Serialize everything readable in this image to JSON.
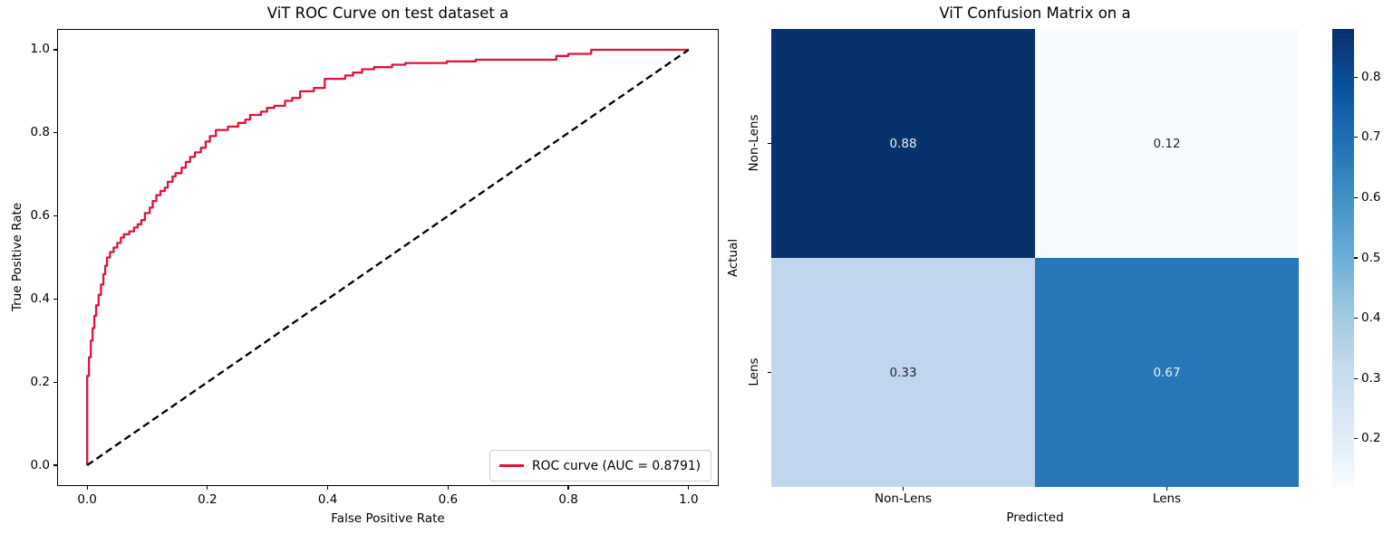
{
  "figure": {
    "background": "#ffffff"
  },
  "chart_data": [
    {
      "type": "line",
      "id": "roc-curve-plot",
      "title": "ViT ROC Curve on test dataset a",
      "xlabel": "False Positive Rate",
      "ylabel": "True Positive Rate",
      "xlim": [
        -0.05,
        1.05
      ],
      "ylim": [
        -0.05,
        1.05
      ],
      "grid": false,
      "xtick_values": [
        0.0,
        0.2,
        0.4,
        0.6,
        0.8,
        1.0
      ],
      "xtick_labels": [
        "0.0",
        "0.2",
        "0.4",
        "0.6",
        "0.8",
        "1.0"
      ],
      "ytick_values": [
        0.0,
        0.2,
        0.4,
        0.6,
        0.8,
        1.0
      ],
      "ytick_labels": [
        "0.0",
        "0.2",
        "0.4",
        "0.6",
        "0.8",
        "1.0"
      ],
      "auc": "0.8791",
      "legend": {
        "position": "lower right",
        "label": "ROC curve (AUC = 0.8791)",
        "line_color": "#DC143C"
      },
      "series": [
        {
          "name": "roc-curve",
          "color": "#DC143C",
          "width": 2.3,
          "dash": null,
          "points": [
            [
              0.0,
              0.0
            ],
            [
              0.0,
              0.215
            ],
            [
              0.003,
              0.215
            ],
            [
              0.003,
              0.26
            ],
            [
              0.006,
              0.26
            ],
            [
              0.006,
              0.3
            ],
            [
              0.009,
              0.3
            ],
            [
              0.009,
              0.33
            ],
            [
              0.012,
              0.33
            ],
            [
              0.012,
              0.36
            ],
            [
              0.015,
              0.36
            ],
            [
              0.015,
              0.385
            ],
            [
              0.019,
              0.385
            ],
            [
              0.019,
              0.41
            ],
            [
              0.023,
              0.41
            ],
            [
              0.023,
              0.435
            ],
            [
              0.027,
              0.435
            ],
            [
              0.027,
              0.46
            ],
            [
              0.03,
              0.46
            ],
            [
              0.03,
              0.48
            ],
            [
              0.033,
              0.48
            ],
            [
              0.033,
              0.5
            ],
            [
              0.038,
              0.5
            ],
            [
              0.038,
              0.513
            ],
            [
              0.044,
              0.513
            ],
            [
              0.044,
              0.524
            ],
            [
              0.05,
              0.524
            ],
            [
              0.05,
              0.535
            ],
            [
              0.056,
              0.535
            ],
            [
              0.056,
              0.548
            ],
            [
              0.061,
              0.548
            ],
            [
              0.061,
              0.556
            ],
            [
              0.07,
              0.556
            ],
            [
              0.07,
              0.563
            ],
            [
              0.078,
              0.563
            ],
            [
              0.078,
              0.572
            ],
            [
              0.084,
              0.572
            ],
            [
              0.084,
              0.58
            ],
            [
              0.09,
              0.58
            ],
            [
              0.09,
              0.59
            ],
            [
              0.096,
              0.59
            ],
            [
              0.096,
              0.607
            ],
            [
              0.104,
              0.607
            ],
            [
              0.104,
              0.62
            ],
            [
              0.109,
              0.62
            ],
            [
              0.109,
              0.636
            ],
            [
              0.115,
              0.636
            ],
            [
              0.115,
              0.65
            ],
            [
              0.122,
              0.65
            ],
            [
              0.122,
              0.66
            ],
            [
              0.129,
              0.66
            ],
            [
              0.129,
              0.668
            ],
            [
              0.134,
              0.668
            ],
            [
              0.134,
              0.682
            ],
            [
              0.142,
              0.682
            ],
            [
              0.142,
              0.695
            ],
            [
              0.147,
              0.695
            ],
            [
              0.147,
              0.703
            ],
            [
              0.157,
              0.703
            ],
            [
              0.157,
              0.716
            ],
            [
              0.164,
              0.716
            ],
            [
              0.164,
              0.73
            ],
            [
              0.171,
              0.73
            ],
            [
              0.171,
              0.742
            ],
            [
              0.179,
              0.742
            ],
            [
              0.179,
              0.753
            ],
            [
              0.189,
              0.753
            ],
            [
              0.189,
              0.764
            ],
            [
              0.197,
              0.764
            ],
            [
              0.197,
              0.779
            ],
            [
              0.204,
              0.779
            ],
            [
              0.204,
              0.792
            ],
            [
              0.214,
              0.792
            ],
            [
              0.214,
              0.807
            ],
            [
              0.234,
              0.807
            ],
            [
              0.234,
              0.815
            ],
            [
              0.251,
              0.815
            ],
            [
              0.251,
              0.824
            ],
            [
              0.263,
              0.824
            ],
            [
              0.263,
              0.832
            ],
            [
              0.271,
              0.832
            ],
            [
              0.271,
              0.843
            ],
            [
              0.289,
              0.843
            ],
            [
              0.289,
              0.851
            ],
            [
              0.299,
              0.851
            ],
            [
              0.299,
              0.86
            ],
            [
              0.311,
              0.86
            ],
            [
              0.311,
              0.865
            ],
            [
              0.329,
              0.865
            ],
            [
              0.329,
              0.877
            ],
            [
              0.341,
              0.877
            ],
            [
              0.341,
              0.884
            ],
            [
              0.354,
              0.884
            ],
            [
              0.354,
              0.9
            ],
            [
              0.377,
              0.9
            ],
            [
              0.377,
              0.908
            ],
            [
              0.395,
              0.908
            ],
            [
              0.395,
              0.93
            ],
            [
              0.429,
              0.93
            ],
            [
              0.429,
              0.938
            ],
            [
              0.442,
              0.938
            ],
            [
              0.442,
              0.945
            ],
            [
              0.457,
              0.945
            ],
            [
              0.457,
              0.953
            ],
            [
              0.477,
              0.953
            ],
            [
              0.477,
              0.958
            ],
            [
              0.507,
              0.958
            ],
            [
              0.507,
              0.964
            ],
            [
              0.529,
              0.964
            ],
            [
              0.529,
              0.968
            ],
            [
              0.598,
              0.968
            ],
            [
              0.598,
              0.972
            ],
            [
              0.646,
              0.972
            ],
            [
              0.646,
              0.976
            ],
            [
              0.78,
              0.976
            ],
            [
              0.78,
              0.985
            ],
            [
              0.8,
              0.985
            ],
            [
              0.8,
              0.99
            ],
            [
              0.838,
              0.99
            ],
            [
              0.838,
              1.0
            ],
            [
              1.0,
              1.0
            ]
          ]
        },
        {
          "name": "chance-diagonal",
          "color": "#000000",
          "width": 2.3,
          "dash": [
            8,
            4.5
          ],
          "points": [
            [
              0,
              0
            ],
            [
              1,
              1
            ]
          ]
        }
      ]
    },
    {
      "type": "heatmap",
      "id": "confusion-matrix",
      "title": "ViT Confusion Matrix on a",
      "xlabel": "Predicted",
      "ylabel": "Actual",
      "x_categories": [
        "Non-Lens",
        "Lens"
      ],
      "y_categories": [
        "Non-Lens",
        "Lens"
      ],
      "colormap": "Blues",
      "rows": [
        {
          "cells": [
            {
              "label": "0.88",
              "value": 0.88,
              "bg": "#09316b",
              "fg": "#f0f0f0"
            },
            {
              "label": "0.12",
              "value": 0.12,
              "bg": "#f7fbff",
              "fg": "#262626"
            }
          ]
        },
        {
          "cells": [
            {
              "label": "0.33",
              "value": 0.33,
              "bg": "#bed7ec",
              "fg": "#262626"
            },
            {
              "label": "0.67",
              "value": 0.67,
              "bg": "#2878b9",
              "fg": "#f0f0f0"
            }
          ]
        }
      ],
      "colorbar": {
        "vmin": 0.12,
        "vmax": 0.88,
        "tick_values": [
          0.2,
          0.3,
          0.4,
          0.5,
          0.6,
          0.7,
          0.8
        ],
        "tick_labels": [
          "0.2",
          "0.3",
          "0.4",
          "0.5",
          "0.6",
          "0.7",
          "0.8"
        ],
        "gradient": [
          "#f7fbff",
          "#deebf7",
          "#c6dbef",
          "#9ecae1",
          "#6baed6",
          "#4292c6",
          "#2171b5",
          "#08519c",
          "#08306b"
        ]
      }
    }
  ]
}
